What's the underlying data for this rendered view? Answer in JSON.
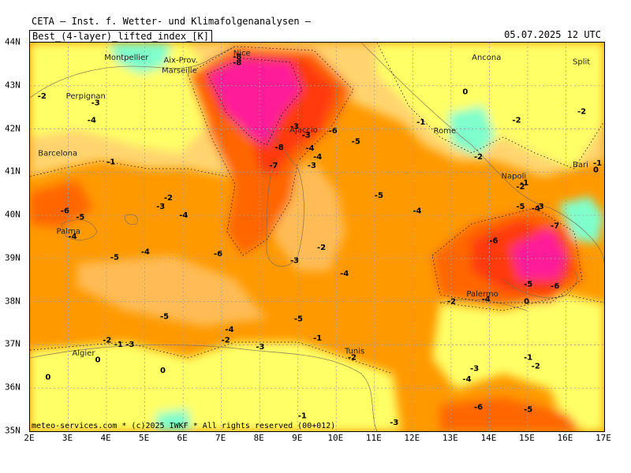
{
  "header": {
    "producer": "CETA — Inst. f. Wetter- und Klimafolgenanalysen —",
    "field": "Best_(4-layer)_lifted_index_[K]",
    "valid_time": "05.07.2025 12 UTC"
  },
  "credit": "meteo-services.com * (c)2025 IWKF * All rights reserved (00+012)",
  "axes": {
    "x_labels": [
      "2E",
      "3E",
      "4E",
      "5E",
      "6E",
      "7E",
      "8E",
      "9E",
      "10E",
      "11E",
      "12E",
      "13E",
      "14E",
      "15E",
      "16E",
      "17E"
    ],
    "y_labels": [
      "44N",
      "43N",
      "42N",
      "41N",
      "40N",
      "39N",
      "38N",
      "37N",
      "36N",
      "35N"
    ]
  },
  "cities": [
    {
      "name": "Montpellier",
      "lon": 3.9,
      "lat": 43.6
    },
    {
      "name": "Aix-Prov.",
      "lon": 5.45,
      "lat": 43.53
    },
    {
      "name": "Nice",
      "lon": 7.27,
      "lat": 43.7
    },
    {
      "name": "Marseille",
      "lon": 5.4,
      "lat": 43.3
    },
    {
      "name": "Perpignan",
      "lon": 2.9,
      "lat": 42.7
    },
    {
      "name": "Barcelona",
      "lon": 2.17,
      "lat": 41.38
    },
    {
      "name": "Ajaccio",
      "lon": 8.74,
      "lat": 41.92
    },
    {
      "name": "Palma",
      "lon": 2.65,
      "lat": 39.57
    },
    {
      "name": "Ancona",
      "lon": 13.5,
      "lat": 43.6
    },
    {
      "name": "Split",
      "lon": 16.44,
      "lat": 43.5
    },
    {
      "name": "Rome",
      "lon": 12.5,
      "lat": 41.9
    },
    {
      "name": "Napoli",
      "lon": 14.27,
      "lat": 40.85
    },
    {
      "name": "Bari",
      "lon": 16.87,
      "lat": 41.12
    },
    {
      "name": "Palermo",
      "lon": 13.36,
      "lat": 38.12
    },
    {
      "name": "Algier",
      "lon": 3.06,
      "lat": 36.75
    },
    {
      "name": "Tunis",
      "lon": 10.18,
      "lat": 36.8
    }
  ],
  "contour_labels": [
    {
      "t": "-8",
      "lon": 7.3,
      "lat": 43.62
    },
    {
      "t": "-8",
      "lon": 7.3,
      "lat": 43.48
    },
    {
      "t": "-3",
      "lon": 3.6,
      "lat": 42.55
    },
    {
      "t": "-4",
      "lon": 3.5,
      "lat": 42.15
    },
    {
      "t": "-1",
      "lon": 4.0,
      "lat": 41.18
    },
    {
      "t": "-8",
      "lon": 8.4,
      "lat": 41.52
    },
    {
      "t": "-7",
      "lon": 8.25,
      "lat": 41.1
    },
    {
      "t": "-3",
      "lon": 8.8,
      "lat": 42.0
    },
    {
      "t": "-3",
      "lon": 9.1,
      "lat": 41.8
    },
    {
      "t": "-4",
      "lon": 9.2,
      "lat": 41.5
    },
    {
      "t": "-4",
      "lon": 9.4,
      "lat": 41.3
    },
    {
      "t": "-3",
      "lon": 9.25,
      "lat": 41.1
    },
    {
      "t": "-6",
      "lon": 9.8,
      "lat": 41.9
    },
    {
      "t": "-5",
      "lon": 10.4,
      "lat": 41.65
    },
    {
      "t": "-5",
      "lon": 11.0,
      "lat": 40.4
    },
    {
      "t": "-4",
      "lon": 12.0,
      "lat": 40.05
    },
    {
      "t": "-1",
      "lon": 12.1,
      "lat": 42.1
    },
    {
      "t": "0",
      "lon": 13.3,
      "lat": 42.8
    },
    {
      "t": "-2",
      "lon": 14.6,
      "lat": 42.15
    },
    {
      "t": "-2",
      "lon": 16.3,
      "lat": 42.35
    },
    {
      "t": "-1",
      "lon": 16.9,
      "lat": 41.15
    },
    {
      "t": "0",
      "lon": 17.2,
      "lat": 41.0
    },
    {
      "t": "-2",
      "lon": 13.6,
      "lat": 41.3
    },
    {
      "t": "-1",
      "lon": 14.8,
      "lat": 40.7
    },
    {
      "t": "-2",
      "lon": 14.7,
      "lat": 40.6
    },
    {
      "t": "-5",
      "lon": 14.7,
      "lat": 40.15
    },
    {
      "t": "-4",
      "lon": 15.1,
      "lat": 40.1
    },
    {
      "t": "-3",
      "lon": 15.2,
      "lat": 40.15
    },
    {
      "t": "-7",
      "lon": 15.6,
      "lat": 39.7
    },
    {
      "t": "-6",
      "lon": 14.0,
      "lat": 39.35
    },
    {
      "t": "-5",
      "lon": 14.9,
      "lat": 38.35
    },
    {
      "t": "-6",
      "lon": 15.6,
      "lat": 38.3
    },
    {
      "t": "-2",
      "lon": 12.9,
      "lat": 37.95
    },
    {
      "t": "-4",
      "lon": 13.8,
      "lat": 38.0
    },
    {
      "t": "0",
      "lon": 14.9,
      "lat": 37.95
    },
    {
      "t": "-1",
      "lon": 14.9,
      "lat": 36.65
    },
    {
      "t": "-2",
      "lon": 15.1,
      "lat": 36.45
    },
    {
      "t": "-3",
      "lon": 13.5,
      "lat": 36.4
    },
    {
      "t": "-4",
      "lon": 13.3,
      "lat": 36.15
    },
    {
      "t": "-6",
      "lon": 13.6,
      "lat": 35.5
    },
    {
      "t": "-5",
      "lon": 14.9,
      "lat": 35.45
    },
    {
      "t": "-3",
      "lon": 11.4,
      "lat": 35.15
    },
    {
      "t": "-1",
      "lon": 9.0,
      "lat": 35.3
    },
    {
      "t": "-2",
      "lon": 10.3,
      "lat": 36.65
    },
    {
      "t": "-1",
      "lon": 9.4,
      "lat": 37.1
    },
    {
      "t": "-3",
      "lon": 7.9,
      "lat": 36.9
    },
    {
      "t": "-2",
      "lon": 7.0,
      "lat": 37.05
    },
    {
      "t": "-4",
      "lon": 7.1,
      "lat": 37.3
    },
    {
      "t": "-5",
      "lon": 8.9,
      "lat": 37.55
    },
    {
      "t": "-5",
      "lon": 5.4,
      "lat": 37.6
    },
    {
      "t": "-2",
      "lon": 3.9,
      "lat": 37.05
    },
    {
      "t": "-1",
      "lon": 4.2,
      "lat": 36.95
    },
    {
      "t": "-3",
      "lon": 4.5,
      "lat": 36.95
    },
    {
      "t": "0",
      "lon": 3.7,
      "lat": 36.6
    },
    {
      "t": "0",
      "lon": 5.4,
      "lat": 36.35
    },
    {
      "t": "0",
      "lon": 2.4,
      "lat": 36.2
    },
    {
      "t": "-4",
      "lon": 5.9,
      "lat": 39.95
    },
    {
      "t": "-3",
      "lon": 5.3,
      "lat": 40.15
    },
    {
      "t": "-2",
      "lon": 5.5,
      "lat": 40.35
    },
    {
      "t": "-6",
      "lon": 2.8,
      "lat": 40.05
    },
    {
      "t": "-5",
      "lon": 3.2,
      "lat": 39.9
    },
    {
      "t": "-4",
      "lon": 3.0,
      "lat": 39.45
    },
    {
      "t": "-5",
      "lon": 4.1,
      "lat": 38.97
    },
    {
      "t": "-4",
      "lon": 4.9,
      "lat": 39.1
    },
    {
      "t": "-6",
      "lon": 6.8,
      "lat": 39.05
    },
    {
      "t": "-3",
      "lon": 8.8,
      "lat": 38.9
    },
    {
      "t": "-2",
      "lon": 9.5,
      "lat": 39.2
    },
    {
      "t": "-4",
      "lon": 10.1,
      "lat": 38.6
    },
    {
      "t": "-2",
      "lon": 2.2,
      "lat": 42.7
    }
  ],
  "colors": {
    "pink": "#ff1a99",
    "red_dark": "#ff3a10",
    "red": "#ff6600",
    "orange": "#ff9900",
    "orange_light": "#ffbb55",
    "yellow_light": "#ffd470",
    "yellow": "#ffff66",
    "aqua": "#7fffcc",
    "grid": "#a0a0a0"
  }
}
